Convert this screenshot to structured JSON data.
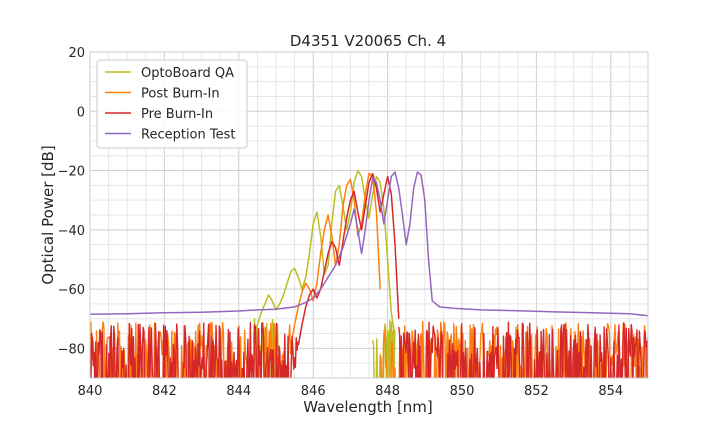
{
  "chart_data": {
    "type": "line",
    "title": "D4351 V20065 Ch. 4",
    "xlabel": "Wavelength [nm]",
    "ylabel": "Optical Power [dB]",
    "xlim": [
      840,
      855
    ],
    "ylim": [
      -90,
      20
    ],
    "xticks": [
      840,
      842,
      844,
      846,
      848,
      850,
      852,
      854
    ],
    "yticks": [
      20,
      0,
      -20,
      -40,
      -60,
      -80
    ],
    "x_minor_step": 0.5,
    "y_minor_step": 5,
    "grid": true,
    "legend_position": "top-left",
    "noise_floor_clip": -90,
    "series": [
      {
        "name": "OptoBoard QA",
        "color": "#bcbd22",
        "noise": {
          "level": -76,
          "amp": 6,
          "ranges": [
            [
              844.4,
              845.1
            ],
            [
              847.6,
              848.2
            ]
          ]
        },
        "points": [
          [
            844.4,
            -76
          ],
          [
            844.5,
            -72
          ],
          [
            844.6,
            -68
          ],
          [
            844.7,
            -65
          ],
          [
            844.8,
            -62
          ],
          [
            844.9,
            -64
          ],
          [
            845.0,
            -67
          ],
          [
            845.1,
            -65
          ],
          [
            845.2,
            -62
          ],
          [
            845.3,
            -58
          ],
          [
            845.4,
            -54
          ],
          [
            845.5,
            -53
          ],
          [
            845.6,
            -56
          ],
          [
            845.7,
            -60
          ],
          [
            845.8,
            -56
          ],
          [
            845.9,
            -48
          ],
          [
            846.0,
            -38
          ],
          [
            846.1,
            -34
          ],
          [
            846.2,
            -42
          ],
          [
            846.3,
            -55
          ],
          [
            846.4,
            -52
          ],
          [
            846.5,
            -38
          ],
          [
            846.6,
            -27
          ],
          [
            846.7,
            -25
          ],
          [
            846.8,
            -32
          ],
          [
            846.9,
            -40
          ],
          [
            847.0,
            -34
          ],
          [
            847.1,
            -24
          ],
          [
            847.2,
            -20
          ],
          [
            847.3,
            -22
          ],
          [
            847.4,
            -30
          ],
          [
            847.5,
            -36
          ],
          [
            847.6,
            -28
          ],
          [
            847.7,
            -22
          ],
          [
            847.8,
            -24
          ],
          [
            847.9,
            -33
          ],
          [
            848.0,
            -50
          ],
          [
            848.1,
            -68
          ],
          [
            848.2,
            -76
          ]
        ]
      },
      {
        "name": "Post Burn-In",
        "color": "#ff7f0e",
        "noise": {
          "level": -79,
          "amp": 8,
          "ranges": [
            [
              840.0,
              845.4
            ],
            [
              847.8,
              855.0
            ]
          ]
        },
        "points": [
          [
            845.4,
            -79
          ],
          [
            845.5,
            -72
          ],
          [
            845.6,
            -66
          ],
          [
            845.7,
            -61
          ],
          [
            845.8,
            -58
          ],
          [
            845.9,
            -60
          ],
          [
            846.0,
            -64
          ],
          [
            846.1,
            -58
          ],
          [
            846.2,
            -48
          ],
          [
            846.3,
            -40
          ],
          [
            846.4,
            -35
          ],
          [
            846.5,
            -42
          ],
          [
            846.6,
            -52
          ],
          [
            846.7,
            -45
          ],
          [
            846.8,
            -32
          ],
          [
            846.9,
            -25
          ],
          [
            847.0,
            -23
          ],
          [
            847.1,
            -30
          ],
          [
            847.2,
            -42
          ],
          [
            847.3,
            -38
          ],
          [
            847.4,
            -28
          ],
          [
            847.5,
            -21
          ],
          [
            847.6,
            -22
          ],
          [
            847.7,
            -34
          ],
          [
            847.8,
            -60
          ]
        ]
      },
      {
        "name": "Pre Burn-In",
        "color": "#d62728",
        "noise": {
          "level": -79,
          "amp": 8,
          "ranges": [
            [
              840.0,
              845.6
            ],
            [
              848.3,
              855.0
            ]
          ]
        },
        "points": [
          [
            845.6,
            -79
          ],
          [
            845.7,
            -72
          ],
          [
            845.8,
            -66
          ],
          [
            845.9,
            -62
          ],
          [
            846.0,
            -60
          ],
          [
            846.1,
            -63
          ],
          [
            846.2,
            -60
          ],
          [
            846.3,
            -54
          ],
          [
            846.4,
            -48
          ],
          [
            846.5,
            -44
          ],
          [
            846.6,
            -46
          ],
          [
            846.7,
            -52
          ],
          [
            846.8,
            -44
          ],
          [
            846.9,
            -36
          ],
          [
            847.0,
            -30
          ],
          [
            847.1,
            -27
          ],
          [
            847.2,
            -34
          ],
          [
            847.3,
            -40
          ],
          [
            847.4,
            -32
          ],
          [
            847.5,
            -24
          ],
          [
            847.6,
            -21
          ],
          [
            847.7,
            -26
          ],
          [
            847.8,
            -34
          ],
          [
            847.9,
            -28
          ],
          [
            848.0,
            -22
          ],
          [
            848.1,
            -28
          ],
          [
            848.2,
            -45
          ],
          [
            848.3,
            -70
          ]
        ]
      },
      {
        "name": "Reception Test",
        "color": "#9467bd",
        "points": [
          [
            840.0,
            -68.5
          ],
          [
            841.0,
            -68.3
          ],
          [
            842.0,
            -68.0
          ],
          [
            843.0,
            -67.8
          ],
          [
            844.0,
            -67.4
          ],
          [
            844.5,
            -67.0
          ],
          [
            845.0,
            -66.8
          ],
          [
            845.5,
            -66.0
          ],
          [
            845.8,
            -64.5
          ],
          [
            846.0,
            -63.0
          ],
          [
            846.2,
            -60.0
          ],
          [
            846.4,
            -56.0
          ],
          [
            846.6,
            -52.0
          ],
          [
            846.8,
            -46.0
          ],
          [
            847.0,
            -38.0
          ],
          [
            847.1,
            -33.0
          ],
          [
            847.2,
            -40.0
          ],
          [
            847.3,
            -48.0
          ],
          [
            847.4,
            -40.0
          ],
          [
            847.5,
            -30.0
          ],
          [
            847.6,
            -22.5
          ],
          [
            847.7,
            -24.0
          ],
          [
            847.8,
            -30.0
          ],
          [
            847.9,
            -38.0
          ],
          [
            848.0,
            -30.0
          ],
          [
            848.1,
            -22.0
          ],
          [
            848.2,
            -20.5
          ],
          [
            848.3,
            -26.0
          ],
          [
            848.4,
            -35.0
          ],
          [
            848.5,
            -45.0
          ],
          [
            848.6,
            -38.0
          ],
          [
            848.7,
            -26.0
          ],
          [
            848.8,
            -20.5
          ],
          [
            848.9,
            -21.5
          ],
          [
            849.0,
            -30.0
          ],
          [
            849.1,
            -50.0
          ],
          [
            849.2,
            -64.0
          ],
          [
            849.4,
            -66.0
          ],
          [
            849.8,
            -66.5
          ],
          [
            850.5,
            -67.0
          ],
          [
            851.5,
            -67.3
          ],
          [
            852.5,
            -67.7
          ],
          [
            853.5,
            -68.0
          ],
          [
            854.5,
            -68.3
          ],
          [
            855.0,
            -69.0
          ]
        ]
      }
    ]
  }
}
